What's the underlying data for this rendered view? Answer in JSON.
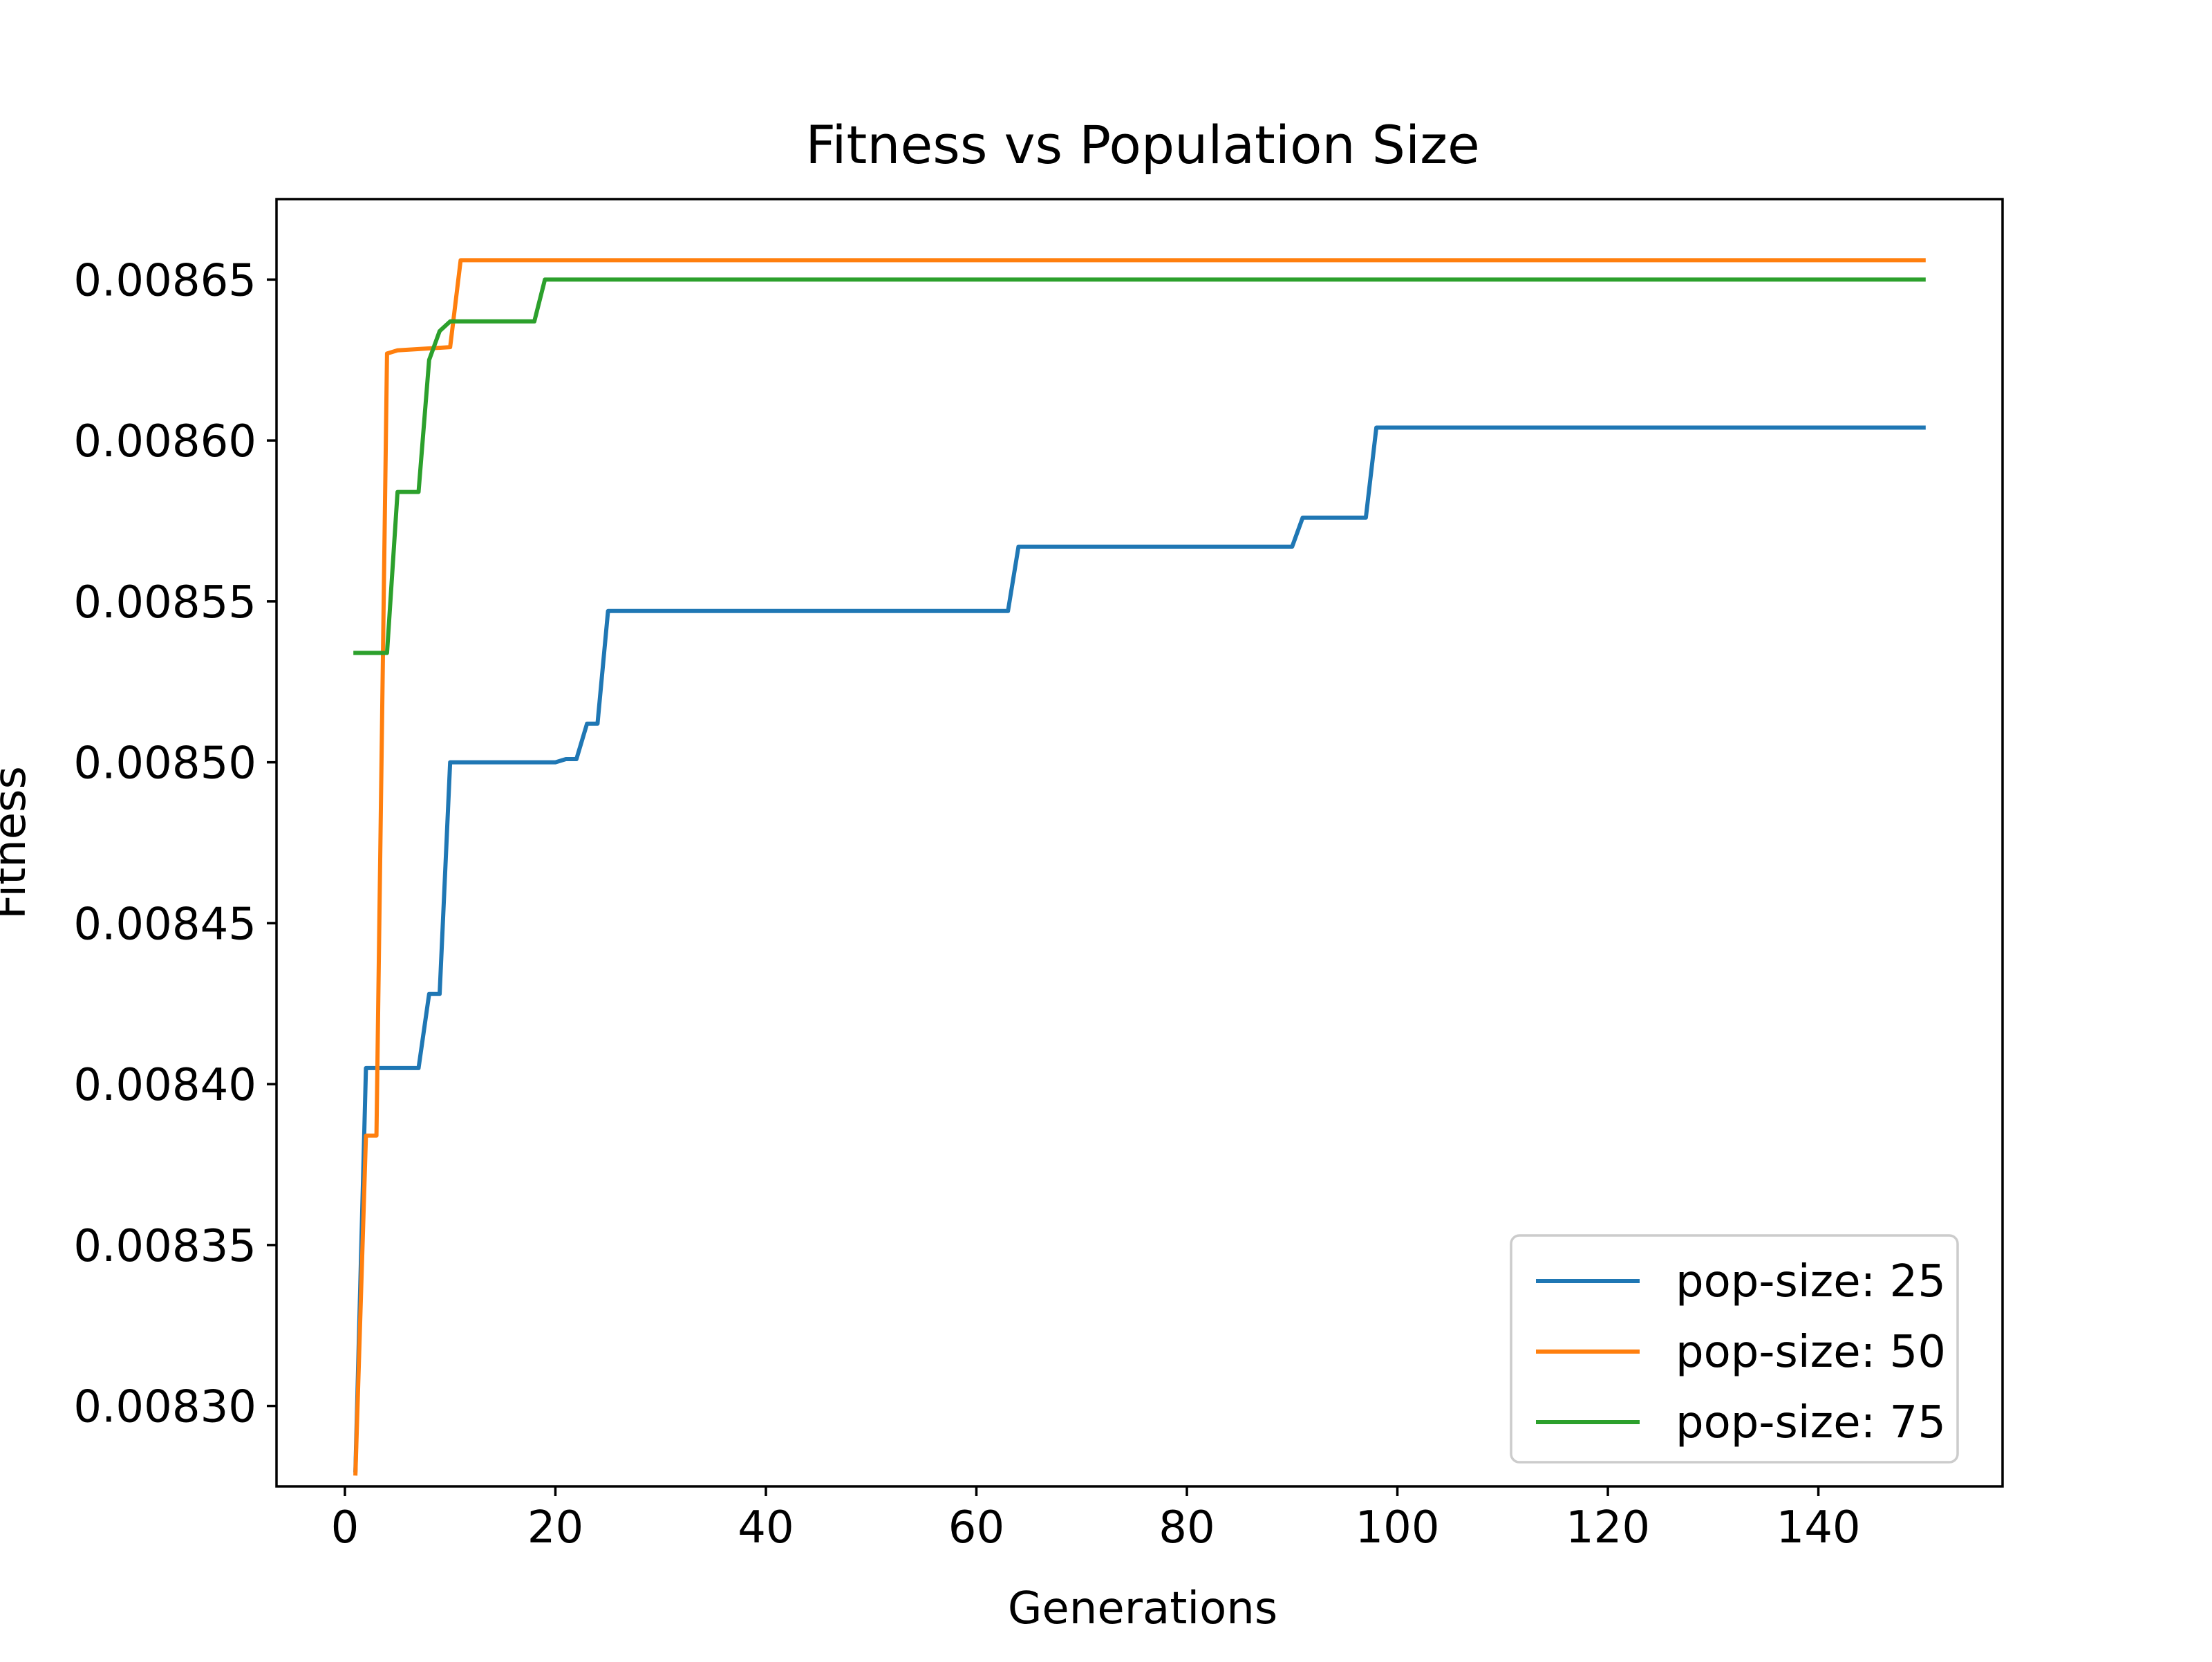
{
  "chart_data": {
    "type": "line",
    "title": "Fitness vs Population Size",
    "xlabel": "Generations",
    "ylabel": "Fitness",
    "xlim": [
      -6.5,
      157.5
    ],
    "ylim": [
      0.008275,
      0.008675
    ],
    "xticks": [
      0,
      20,
      40,
      60,
      80,
      100,
      120,
      140
    ],
    "xtick_labels": [
      "0",
      "20",
      "40",
      "60",
      "80",
      "100",
      "120",
      "140"
    ],
    "yticks": [
      0.0083,
      0.00835,
      0.0084,
      0.00845,
      0.0085,
      0.00855,
      0.0086,
      0.00865
    ],
    "ytick_labels": [
      "0.00830",
      "0.00835",
      "0.00840",
      "0.00845",
      "0.00850",
      "0.00855",
      "0.00860",
      "0.00865"
    ],
    "grid": false,
    "legend_position": "bottom-right",
    "series": [
      {
        "name": "pop-size: 25",
        "legend_label": "pop-size: 25",
        "color": "#1f77b4",
        "x": [
          1,
          2,
          7,
          8,
          9,
          10,
          20,
          21,
          22,
          23,
          24,
          25,
          63,
          64,
          90,
          91,
          97,
          98,
          150
        ],
        "y": [
          0.00828,
          0.008405,
          0.008405,
          0.008428,
          0.008428,
          0.0085,
          0.0085,
          0.008501,
          0.008501,
          0.008512,
          0.008512,
          0.008547,
          0.008547,
          0.008567,
          0.008567,
          0.008576,
          0.008576,
          0.008604,
          0.008604
        ]
      },
      {
        "name": "pop-size: 50",
        "legend_label": "pop-size: 50",
        "color": "#ff7f0e",
        "x": [
          1,
          2,
          3,
          4,
          5,
          10,
          11,
          150
        ],
        "y": [
          0.008279,
          0.008384,
          0.008384,
          0.008627,
          0.008628,
          0.008629,
          0.008656,
          0.008656
        ]
      },
      {
        "name": "pop-size: 75",
        "legend_label": "pop-size: 75",
        "color": "#2ca02c",
        "x": [
          1,
          4,
          5,
          7,
          8,
          9,
          10,
          18,
          19,
          150
        ],
        "y": [
          0.008534,
          0.008534,
          0.008584,
          0.008584,
          0.008625,
          0.008634,
          0.008637,
          0.008637,
          0.00865,
          0.00865
        ]
      }
    ]
  }
}
